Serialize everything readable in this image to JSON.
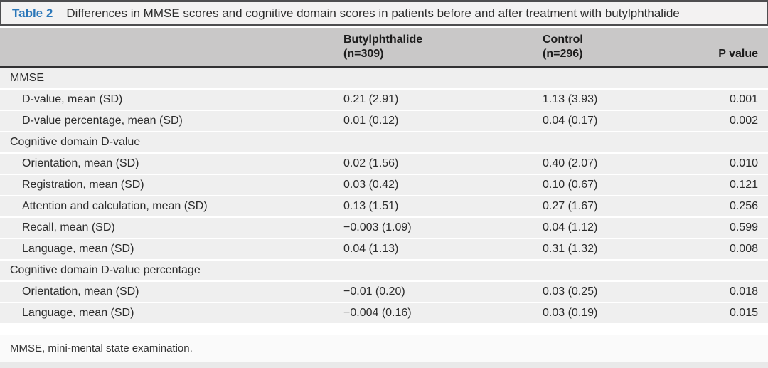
{
  "table": {
    "label": "Table 2",
    "title": "Differences in MMSE scores and cognitive domain scores in patients before and after treatment with butylphthalide",
    "columns": {
      "group1": "Butylphthalide\n(n=309)",
      "group2": "Control\n(n=296)",
      "pvalue": "P value"
    },
    "rows": [
      {
        "type": "section",
        "label": "MMSE"
      },
      {
        "type": "data",
        "label": "D-value, mean (SD)",
        "butyl": "0.21 (2.91)",
        "control": "1.13 (3.93)",
        "p": "0.001"
      },
      {
        "type": "data",
        "label": "D-value percentage, mean (SD)",
        "butyl": "0.01 (0.12)",
        "control": "0.04 (0.17)",
        "p": "0.002"
      },
      {
        "type": "section",
        "label": "Cognitive domain D-value"
      },
      {
        "type": "data",
        "label": "Orientation, mean (SD)",
        "butyl": "0.02 (1.56)",
        "control": "0.40 (2.07)",
        "p": "0.010"
      },
      {
        "type": "data",
        "label": "Registration, mean (SD)",
        "butyl": "0.03 (0.42)",
        "control": "0.10 (0.67)",
        "p": "0.121"
      },
      {
        "type": "data",
        "label": "Attention and calculation, mean (SD)",
        "butyl": "0.13 (1.51)",
        "control": "0.27 (1.67)",
        "p": "0.256"
      },
      {
        "type": "data",
        "label": "Recall, mean (SD)",
        "butyl": "−0.003 (1.09)",
        "control": "0.04 (1.12)",
        "p": "0.599"
      },
      {
        "type": "data",
        "label": "Language, mean (SD)",
        "butyl": "0.04 (1.13)",
        "control": "0.31 (1.32)",
        "p": "0.008"
      },
      {
        "type": "section",
        "label": "Cognitive domain D-value percentage"
      },
      {
        "type": "data",
        "label": "Orientation, mean (SD)",
        "butyl": "−0.01 (0.20)",
        "control": "0.03 (0.25)",
        "p": "0.018"
      },
      {
        "type": "data",
        "label": "Language, mean (SD)",
        "butyl": "−0.004 (0.16)",
        "control": "0.03 (0.19)",
        "p": "0.015"
      }
    ],
    "footnote": "MMSE, mini-mental state examination.",
    "colors": {
      "accent_blue": "#2b77b9",
      "header_band": "#c9c8c8",
      "row_band": "#efefef",
      "dark_rule": "#4e4e50"
    }
  }
}
